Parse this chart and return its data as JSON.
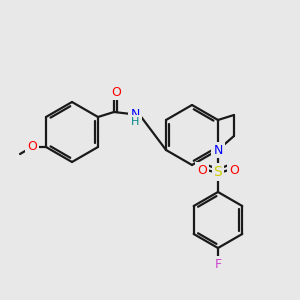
{
  "background_color": "#e8e8e8",
  "bond_color": "#1a1a1a",
  "atom_colors": {
    "O": "#ff0000",
    "N": "#0000ff",
    "S": "#cccc00",
    "F": "#cc44cc",
    "H": "#008888",
    "C": "#1a1a1a"
  }
}
